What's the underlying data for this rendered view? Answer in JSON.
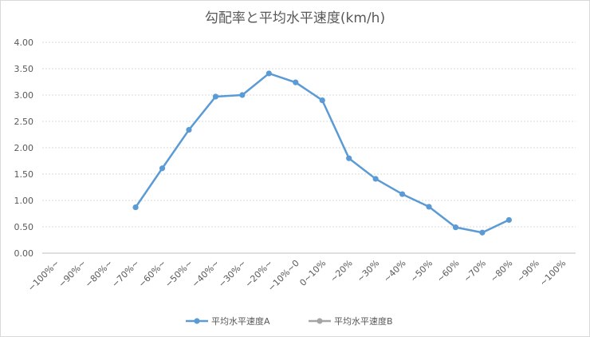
{
  "chart_data": {
    "type": "line",
    "title": "勾配率と平均水平速度(km/h)",
    "categories": [
      "−100%~",
      "−90%~",
      "−80%~",
      "−70%~",
      "−60%~",
      "−50%~",
      "−40%~",
      "−30%~",
      "−20%~",
      "−10%~0",
      "0~10%",
      "~20%",
      "~30%",
      "~40%",
      "~50%",
      "~60%",
      "~70%",
      "~80%",
      "~90%",
      "~100%"
    ],
    "series": [
      {
        "name": "平均水平速度A",
        "color": "#5b9bd5",
        "values": [
          null,
          null,
          null,
          0.87,
          1.61,
          2.34,
          2.97,
          3.0,
          3.41,
          3.24,
          2.9,
          1.8,
          1.41,
          1.12,
          0.88,
          0.49,
          0.39,
          0.63,
          null,
          null
        ]
      },
      {
        "name": "平均水平速度B",
        "color": "#a5a5a5",
        "values": [
          null,
          null,
          null,
          null,
          null,
          null,
          null,
          null,
          null,
          null,
          null,
          null,
          null,
          null,
          null,
          null,
          null,
          null,
          null,
          null
        ]
      }
    ],
    "yticks": [
      "0.00",
      "0.50",
      "1.00",
      "1.50",
      "2.00",
      "2.50",
      "3.00",
      "3.50",
      "4.00"
    ],
    "ylim": [
      0,
      4
    ],
    "grid": true,
    "legend": "bottom"
  }
}
